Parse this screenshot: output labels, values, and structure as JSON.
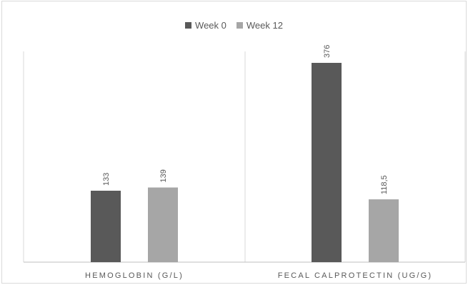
{
  "chart_data": {
    "type": "bar",
    "categories": [
      "HEMOGLOBIN (G/L)",
      "FECAL CALPROTECTIN (UG/G)"
    ],
    "series": [
      {
        "name": "Week 0",
        "values": [
          133,
          376
        ],
        "labels": [
          "133",
          "376"
        ],
        "color": "#595959"
      },
      {
        "name": "Week 12",
        "values": [
          139,
          118.5
        ],
        "labels": [
          "139",
          "118,5"
        ],
        "color": "#a6a6a6"
      }
    ],
    "title": "",
    "xlabel": "",
    "ylabel": "",
    "legend_position": "top-center",
    "grid": false,
    "panels": "separate y-scale per category"
  }
}
